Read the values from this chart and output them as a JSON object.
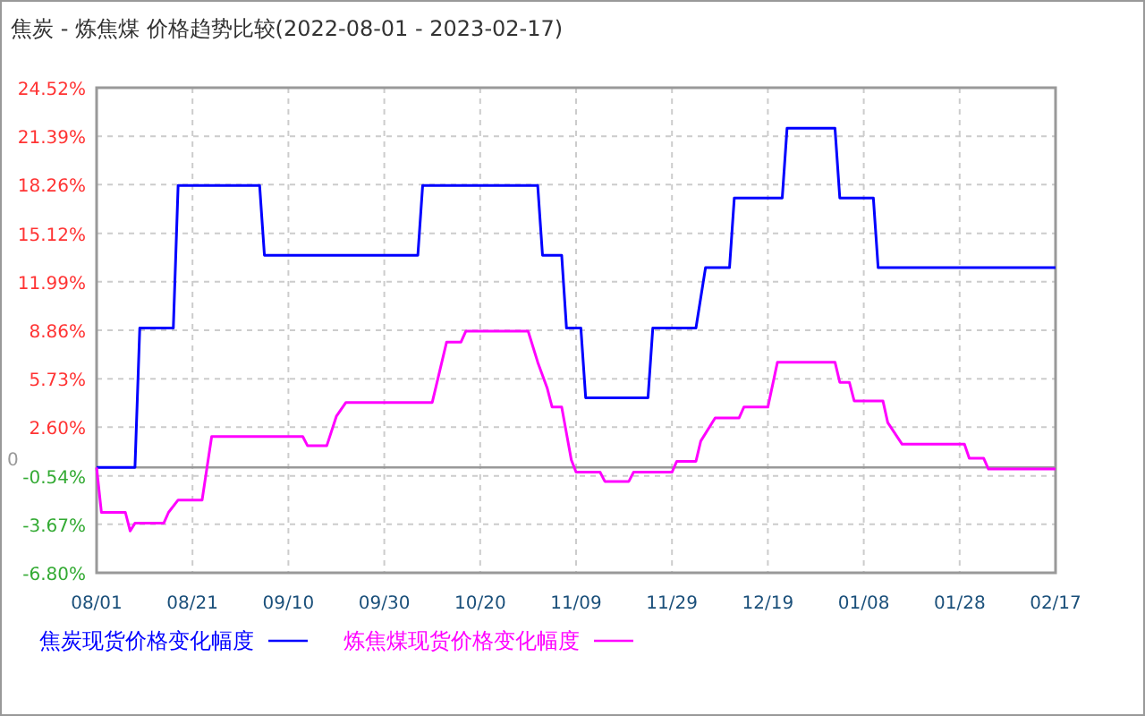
{
  "chart_data": {
    "type": "line",
    "title": "焦炭 - 炼焦煤 价格趋势比较(2022-08-01 - 2023-02-17)",
    "xlim": [
      "2022-08-01",
      "2023-02-17"
    ],
    "xticks": [
      {
        "value": "2022-08-01",
        "label": "08/01"
      },
      {
        "value": "2022-08-21",
        "label": "08/21"
      },
      {
        "value": "2022-09-10",
        "label": "09/10"
      },
      {
        "value": "2022-09-30",
        "label": "09/30"
      },
      {
        "value": "2022-10-20",
        "label": "10/20"
      },
      {
        "value": "2022-11-09",
        "label": "11/09"
      },
      {
        "value": "2022-11-29",
        "label": "11/29"
      },
      {
        "value": "2022-12-19",
        "label": "12/19"
      },
      {
        "value": "2023-01-08",
        "label": "01/08"
      },
      {
        "value": "2023-01-28",
        "label": "01/28"
      },
      {
        "value": "2023-02-17",
        "label": "02/17"
      }
    ],
    "ylim": [
      -6.8,
      24.52
    ],
    "yticks": [
      {
        "value": 24.52,
        "label": "24.52%"
      },
      {
        "value": 21.39,
        "label": "21.39%"
      },
      {
        "value": 18.26,
        "label": "18.26%"
      },
      {
        "value": 15.12,
        "label": "15.12%"
      },
      {
        "value": 11.99,
        "label": "11.99%"
      },
      {
        "value": 8.86,
        "label": "8.86%"
      },
      {
        "value": 5.73,
        "label": "5.73%"
      },
      {
        "value": 2.6,
        "label": "2.60%"
      },
      {
        "value": -0.54,
        "label": "-0.54%"
      },
      {
        "value": -3.67,
        "label": "-3.67%"
      },
      {
        "value": -6.8,
        "label": "-6.80%"
      }
    ],
    "grid": true,
    "legend": "bottom",
    "line_style": "solid",
    "ref_lines": [
      {
        "axis": "y",
        "value": 0,
        "label": "0",
        "color": "#999999"
      }
    ],
    "series": [
      {
        "name": "焦炭现货价格变化幅度",
        "color": "#0000ff",
        "x": [
          "2022-08-01",
          "2022-08-09",
          "2022-08-10",
          "2022-08-17",
          "2022-08-18",
          "2022-09-04",
          "2022-09-05",
          "2022-10-07",
          "2022-10-08",
          "2022-11-01",
          "2022-11-02",
          "2022-11-06",
          "2022-11-07",
          "2022-11-10",
          "2022-11-11",
          "2022-11-24",
          "2022-11-25",
          "2022-12-04",
          "2022-12-06",
          "2022-12-11",
          "2022-12-12",
          "2022-12-22",
          "2022-12-23",
          "2023-01-02",
          "2023-01-03",
          "2023-01-10",
          "2023-01-11",
          "2023-02-17"
        ],
        "values": [
          0,
          0,
          9.0,
          9.0,
          18.2,
          18.2,
          13.7,
          13.7,
          18.2,
          18.2,
          13.7,
          13.7,
          9.0,
          9.0,
          4.5,
          4.5,
          9.0,
          9.0,
          12.9,
          12.9,
          17.4,
          17.4,
          21.9,
          21.9,
          17.4,
          17.4,
          12.9,
          12.9
        ]
      },
      {
        "name": "炼焦煤现货价格变化幅度",
        "color": "#ff00ff",
        "x": [
          "2022-08-01",
          "2022-08-02",
          "2022-08-07",
          "2022-08-08",
          "2022-08-09",
          "2022-08-15",
          "2022-08-16",
          "2022-08-18",
          "2022-08-23",
          "2022-08-25",
          "2022-09-13",
          "2022-09-14",
          "2022-09-18",
          "2022-09-20",
          "2022-09-22",
          "2022-10-10",
          "2022-10-13",
          "2022-10-16",
          "2022-10-17",
          "2022-10-30",
          "2022-11-01",
          "2022-11-03",
          "2022-11-04",
          "2022-11-06",
          "2022-11-08",
          "2022-11-09",
          "2022-11-14",
          "2022-11-15",
          "2022-11-20",
          "2022-11-21",
          "2022-11-29",
          "2022-11-30",
          "2022-12-04",
          "2022-12-05",
          "2022-12-08",
          "2022-12-13",
          "2022-12-14",
          "2022-12-19",
          "2022-12-21",
          "2023-01-02",
          "2023-01-03",
          "2023-01-05",
          "2023-01-06",
          "2023-01-12",
          "2023-01-13",
          "2023-01-16",
          "2023-01-29",
          "2023-01-30",
          "2023-02-02",
          "2023-02-03",
          "2023-02-17"
        ],
        "values": [
          0,
          -2.9,
          -2.9,
          -4.1,
          -3.6,
          -3.6,
          -2.9,
          -2.1,
          -2.1,
          2.0,
          2.0,
          1.4,
          1.4,
          3.3,
          4.2,
          4.2,
          8.1,
          8.1,
          8.8,
          8.8,
          6.8,
          5.1,
          3.9,
          3.9,
          0.5,
          -0.3,
          -0.3,
          -0.9,
          -0.9,
          -0.3,
          -0.3,
          0.4,
          0.4,
          1.7,
          3.2,
          3.2,
          3.9,
          3.9,
          6.8,
          6.8,
          5.5,
          5.5,
          4.3,
          4.3,
          2.9,
          1.5,
          1.5,
          0.6,
          0.6,
          -0.1,
          -0.1
        ]
      }
    ]
  }
}
